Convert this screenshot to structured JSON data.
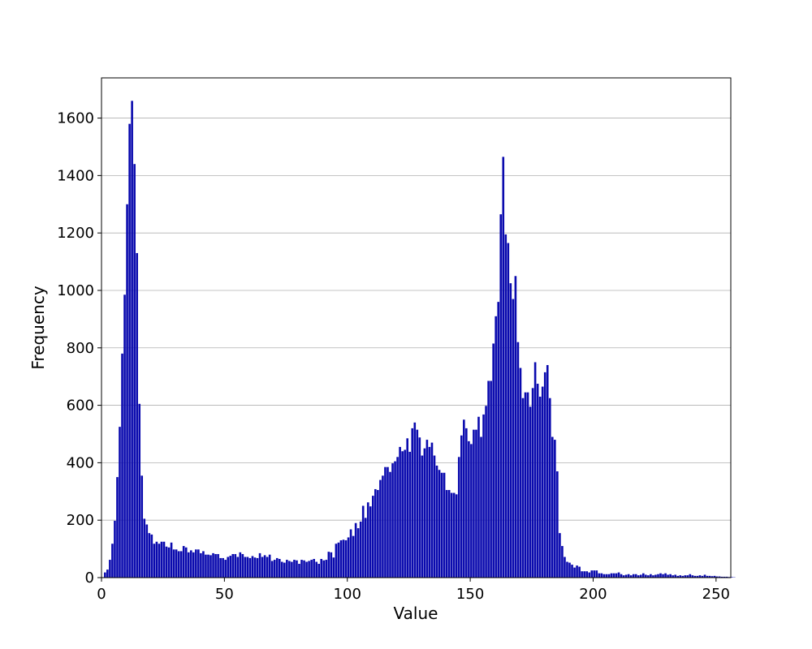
{
  "chart_data": {
    "type": "bar",
    "title": "",
    "xlabel": "Value",
    "ylabel": "Frequency",
    "xlim": [
      0,
      256
    ],
    "ylim": [
      0,
      1740
    ],
    "xticks": [
      0,
      50,
      100,
      150,
      200,
      250
    ],
    "yticks": [
      0,
      200,
      400,
      600,
      800,
      1000,
      1200,
      1400,
      1600
    ],
    "grid": "y-axis only",
    "bar_color": "#0a0aae",
    "bin_start": 0,
    "bin_width": 1,
    "values": [
      0,
      18,
      28,
      62,
      118,
      198,
      350,
      525,
      780,
      985,
      1300,
      1580,
      1660,
      1440,
      1130,
      605,
      355,
      205,
      185,
      155,
      150,
      118,
      125,
      118,
      125,
      125,
      108,
      105,
      122,
      98,
      98,
      92,
      92,
      110,
      105,
      88,
      95,
      88,
      98,
      98,
      85,
      92,
      80,
      80,
      78,
      85,
      82,
      82,
      68,
      68,
      62,
      72,
      76,
      82,
      82,
      72,
      88,
      82,
      72,
      72,
      68,
      75,
      70,
      68,
      85,
      72,
      78,
      72,
      80,
      58,
      62,
      68,
      65,
      55,
      52,
      62,
      58,
      55,
      62,
      60,
      48,
      62,
      60,
      55,
      58,
      62,
      65,
      55,
      48,
      65,
      60,
      62,
      90,
      88,
      70,
      118,
      122,
      130,
      132,
      130,
      140,
      168,
      145,
      190,
      172,
      195,
      250,
      208,
      262,
      248,
      285,
      308,
      305,
      340,
      355,
      385,
      385,
      368,
      398,
      405,
      420,
      455,
      440,
      445,
      485,
      438,
      520,
      540,
      515,
      488,
      425,
      450,
      480,
      455,
      470,
      425,
      390,
      375,
      365,
      365,
      305,
      305,
      295,
      295,
      290,
      420,
      495,
      550,
      520,
      475,
      465,
      515,
      515,
      560,
      490,
      568,
      598,
      685,
      685,
      815,
      910,
      960,
      1265,
      1465,
      1195,
      1165,
      1025,
      970,
      1050,
      820,
      730,
      625,
      645,
      645,
      595,
      660,
      750,
      675,
      630,
      665,
      715,
      740,
      625,
      490,
      480,
      370,
      155,
      110,
      72,
      55,
      52,
      45,
      35,
      42,
      38,
      22,
      22,
      22,
      18,
      25,
      25,
      25,
      15,
      15,
      12,
      12,
      12,
      15,
      15,
      15,
      18,
      12,
      8,
      10,
      12,
      8,
      12,
      12,
      8,
      10,
      15,
      10,
      8,
      12,
      8,
      10,
      12,
      15,
      12,
      15,
      10,
      12,
      8,
      10,
      6,
      8,
      6,
      8,
      8,
      12,
      8,
      6,
      6,
      8,
      6,
      10,
      6,
      6,
      5,
      6,
      4,
      4,
      3,
      3,
      3,
      2,
      2,
      1
    ]
  }
}
